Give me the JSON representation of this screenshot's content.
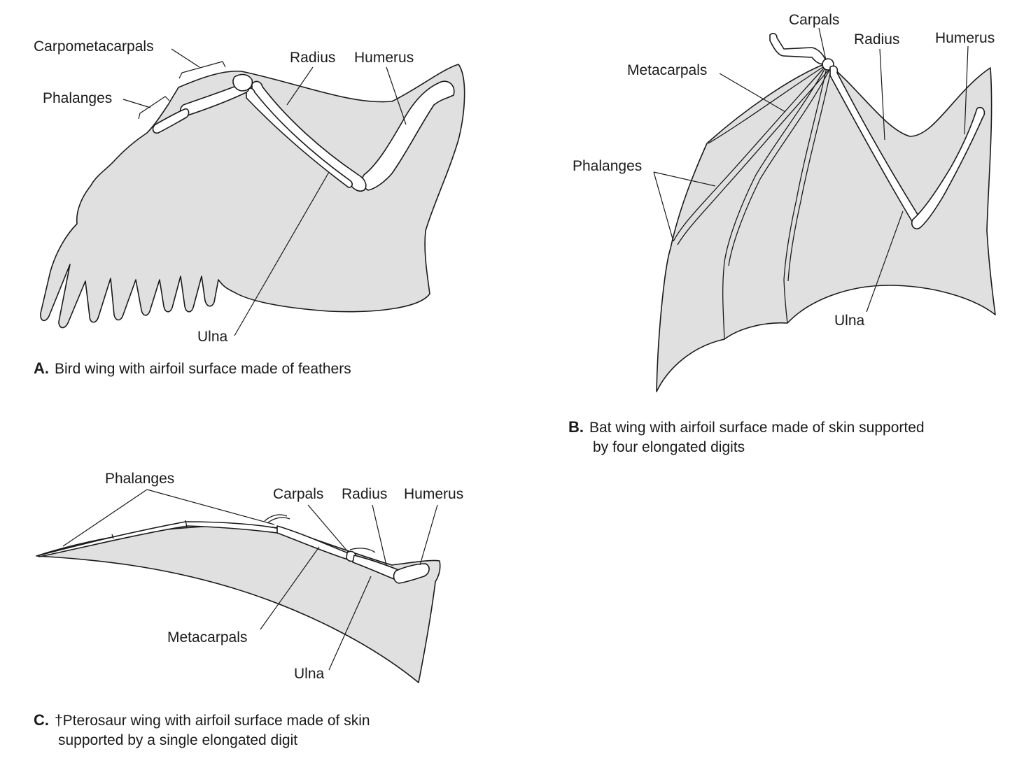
{
  "panel_a": {
    "labels": {
      "carpometacarpals": "Carpometacarpals",
      "phalanges": "Phalanges",
      "radius": "Radius",
      "humerus": "Humerus",
      "ulna": "Ulna"
    },
    "caption_letter": "A.",
    "caption_text": "Bird wing with airfoil surface made of feathers"
  },
  "panel_b": {
    "labels": {
      "carpals": "Carpals",
      "radius": "Radius",
      "humerus": "Humerus",
      "metacarpals": "Metacarpals",
      "phalanges": "Phalanges",
      "ulna": "Ulna"
    },
    "caption_letter": "B.",
    "caption_line1": "Bat wing with airfoil surface made of skin supported",
    "caption_line2": "by four elongated digits"
  },
  "panel_c": {
    "labels": {
      "phalanges": "Phalanges",
      "carpals": "Carpals",
      "radius": "Radius",
      "humerus": "Humerus",
      "metacarpals": "Metacarpals",
      "ulna": "Ulna"
    },
    "caption_letter": "C.",
    "caption_line1": "†Pterosaur wing with airfoil surface made of skin",
    "caption_line2": "supported by a single elongated digit"
  },
  "colors": {
    "membrane": "#e0e0e0",
    "bone": "#ffffff",
    "ink": "#1a1a1a"
  }
}
